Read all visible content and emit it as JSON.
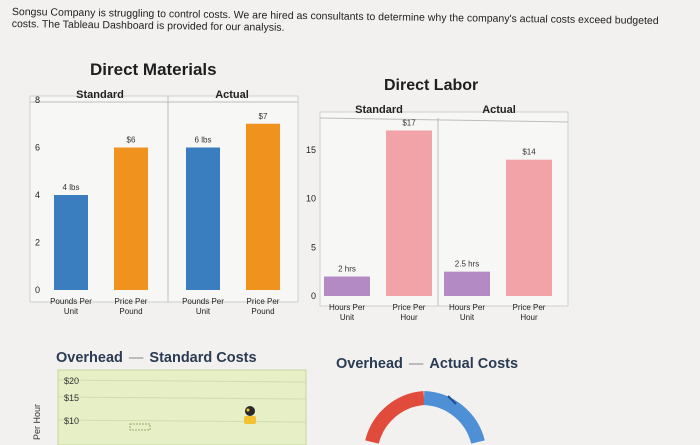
{
  "intro_text": "Songsu Company is struggling to control costs. We are hired as consultants to determine why the company's actual costs exceed budgeted costs. The Tableau Dashboard is provided for our analysis.",
  "colors": {
    "blue": "#3a7ebf",
    "orange": "#f0931e",
    "purple": "#b38ac4",
    "pink": "#f2a3a8",
    "green_panel": "#e6efc6",
    "gauge_red": "#e04b3c",
    "gauge_blue": "#4f8fd6"
  },
  "chart_data": [
    {
      "type": "bar",
      "title": "Direct Materials",
      "groups": [
        {
          "label": "Standard",
          "categories": [
            "Pounds Per Unit",
            "Price Per Pound"
          ],
          "values": [
            4,
            6
          ],
          "data_labels": [
            "4 lbs",
            "$6"
          ],
          "colors": [
            "#3a7ebf",
            "#f0931e"
          ]
        },
        {
          "label": "Actual",
          "categories": [
            "Pounds Per Unit",
            "Price Per Pound"
          ],
          "values": [
            6,
            7
          ],
          "data_labels": [
            "6 lbs",
            "$7"
          ],
          "colors": [
            "#3a7ebf",
            "#f0931e"
          ]
        }
      ],
      "yticks": [
        "8",
        "6",
        "4",
        "2",
        "0"
      ],
      "ylim": [
        0,
        8
      ]
    },
    {
      "type": "bar",
      "title": "Direct Labor",
      "groups": [
        {
          "label": "Standard",
          "categories": [
            "Hours Per Unit",
            "Price Per Hour"
          ],
          "values": [
            2,
            17
          ],
          "data_labels": [
            "2 hrs",
            "$17"
          ],
          "colors": [
            "#b38ac4",
            "#f2a3a8"
          ]
        },
        {
          "label": "Actual",
          "categories": [
            "Hours Per Unit",
            "Price Per Hour"
          ],
          "values": [
            2.5,
            14
          ],
          "data_labels": [
            "2.5 hrs",
            "$14"
          ],
          "colors": [
            "#b38ac4",
            "#f2a3a8"
          ]
        }
      ],
      "yticks": [
        "15",
        "10",
        "5",
        "0"
      ],
      "ylim": [
        0,
        19
      ]
    },
    {
      "type": "scatter",
      "title": "Overhead — Standard Costs",
      "ylabel": "Per Hour",
      "yticks": [
        "$20",
        "$15",
        "$10"
      ]
    }
  ],
  "overhead": {
    "standard_title": "Overhead",
    "standard_sub": "Standard Costs",
    "actual_title": "Overhead",
    "actual_sub": "Actual Costs",
    "dash": "—"
  }
}
